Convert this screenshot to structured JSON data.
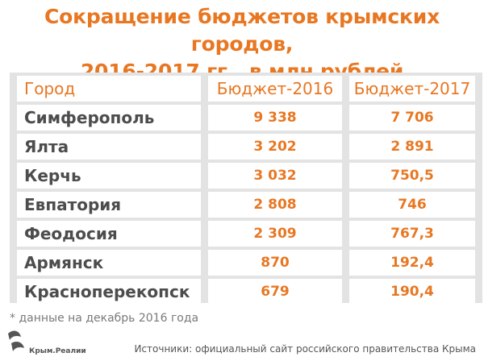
{
  "title_line1": "Сокращение бюджетов крымских городов,",
  "title_line2": "2016-2017 гг., в млн рублей",
  "colors": {
    "accent": "#e87722",
    "text": "#4d4d4d",
    "table_bg": "#e3e3e3"
  },
  "table": {
    "headers": [
      "Город",
      "Бюджет-2016",
      "Бюджет-2017"
    ],
    "rows": [
      [
        "Симферополь",
        "9 338",
        "7 706"
      ],
      [
        "Ялта",
        "3 202",
        "2 891"
      ],
      [
        "Керчь",
        "3 032",
        "750,5"
      ],
      [
        "Евпатория",
        "2 808",
        "746"
      ],
      [
        "Феодосия",
        "2 309",
        "767,3"
      ],
      [
        "Армянск",
        "870",
        "192,4"
      ],
      [
        "Красноперекопск",
        "679",
        "190,4"
      ]
    ]
  },
  "chart_data": {
    "type": "table",
    "title": "Сокращение бюджетов крымских городов, 2016-2017 гг., в млн рублей",
    "columns": [
      "Город",
      "Бюджет-2016",
      "Бюджет-2017"
    ],
    "categories": [
      "Симферополь",
      "Ялта",
      "Керчь",
      "Евпатория",
      "Феодосия",
      "Армянск",
      "Красноперекопск"
    ],
    "series": [
      {
        "name": "Бюджет-2016",
        "values": [
          9338,
          3202,
          3032,
          2808,
          2309,
          870,
          679
        ]
      },
      {
        "name": "Бюджет-2017",
        "values": [
          7706,
          2891,
          750.5,
          746,
          767.3,
          192.4,
          190.4
        ]
      }
    ]
  },
  "footnote": "* данные на декабрь 2016 года",
  "logo_text": "Крым.Реалии",
  "source": "Источники: официальный сайт российского правительства Крыма"
}
